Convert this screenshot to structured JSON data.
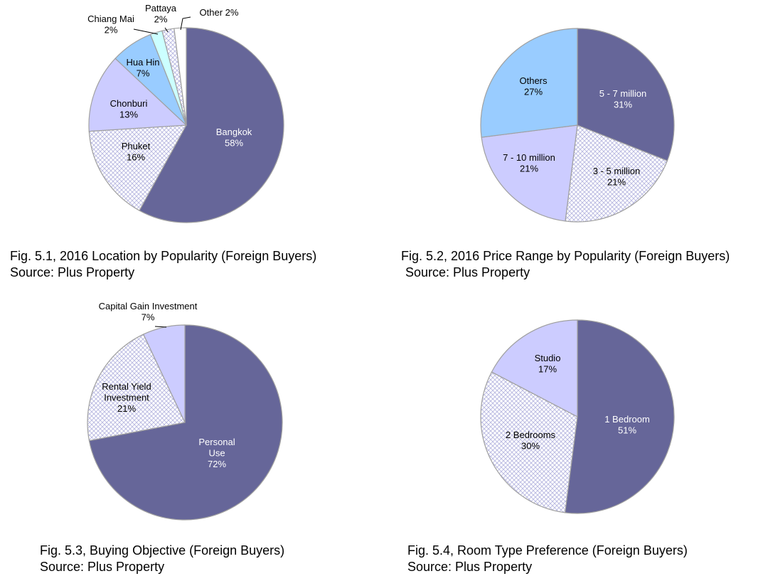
{
  "colors": {
    "dark": "#666699",
    "lavender": "#ccccff",
    "light_blue": "#99ccff",
    "pale_cyan": "#ccffff",
    "hatch": "#b8b8e0",
    "white": "#ffffff",
    "edge": "#a0a0a0",
    "label_light": "#ffffff",
    "label_dark": "#000000"
  },
  "chart_data": [
    {
      "type": "pie",
      "title": "Fig. 5.1, 2016 Location by Popularity (Foreign Buyers)",
      "source": "Source: Plus Property",
      "start_angle_deg": 0,
      "direction": "clockwise",
      "slices": [
        {
          "label": "Bangkok",
          "value": 58,
          "text": "58%",
          "fill": "dark"
        },
        {
          "label": "Phuket",
          "value": 16,
          "text": "16%",
          "fill": "hatch"
        },
        {
          "label": "Chonburi",
          "value": 13,
          "text": "13%",
          "fill": "lavender"
        },
        {
          "label": "Hua Hin",
          "value": 7,
          "text": "7%",
          "fill": "light_blue"
        },
        {
          "label": "Chiang Mai",
          "value": 2,
          "text": "2%",
          "fill": "pale_cyan"
        },
        {
          "label": "Pattaya",
          "value": 2,
          "text": "2%",
          "fill": "hatch"
        },
        {
          "label": "Other",
          "value": 2,
          "text": "2%",
          "fill": "white"
        }
      ]
    },
    {
      "type": "pie",
      "title": "Fig. 5.2, 2016 Price Range by Popularity (Foreign Buyers)",
      "source": "Source: Plus Property",
      "start_angle_deg": 0,
      "direction": "clockwise",
      "slices": [
        {
          "label": "5 - 7 million",
          "value": 31,
          "text": "31%",
          "fill": "dark"
        },
        {
          "label": "3 - 5 million",
          "value": 21,
          "text": "21%",
          "fill": "hatch"
        },
        {
          "label": "7 - 10 million",
          "value": 21,
          "text": "21%",
          "fill": "lavender"
        },
        {
          "label": "Others",
          "value": 27,
          "text": "27%",
          "fill": "light_blue"
        }
      ]
    },
    {
      "type": "pie",
      "title": "Fig. 5.3, Buying Objective (Foreign Buyers)",
      "source": "Source: Plus Property",
      "start_angle_deg": 0,
      "direction": "clockwise",
      "slices": [
        {
          "label": "Personal Use",
          "value": 72,
          "text": "72%",
          "fill": "dark"
        },
        {
          "label": "Rental Yield Investment",
          "value": 21,
          "text": "21%",
          "fill": "hatch"
        },
        {
          "label": "Capital Gain Investment",
          "value": 7,
          "text": "7%",
          "fill": "lavender"
        }
      ]
    },
    {
      "type": "pie",
      "title": "Fig. 5.4, Room Type Preference (Foreign Buyers)",
      "source": "Source: Plus Property",
      "start_angle_deg": 0,
      "direction": "clockwise",
      "slices": [
        {
          "label": "1 Bedroom",
          "value": 51,
          "text": "51%",
          "fill": "dark"
        },
        {
          "label": "2 Bedrooms",
          "value": 30,
          "text": "30%",
          "fill": "hatch"
        },
        {
          "label": "Studio",
          "value": 17,
          "text": "17%",
          "fill": "lavender"
        }
      ]
    }
  ]
}
